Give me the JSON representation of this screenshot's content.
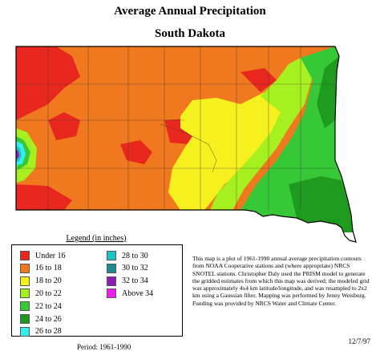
{
  "title": "Average Annual Precipitation",
  "subtitle": "South Dakota",
  "legend": {
    "title": "Legend (in inches)",
    "items": [
      {
        "label": "Under 16",
        "color": "#e8281e"
      },
      {
        "label": "16 to 18",
        "color": "#f0781e"
      },
      {
        "label": "18 to 20",
        "color": "#f5f01e"
      },
      {
        "label": "20 to 22",
        "color": "#a5f01e"
      },
      {
        "label": "22 to 24",
        "color": "#37c837"
      },
      {
        "label": "24 to 26",
        "color": "#1e9b1e"
      },
      {
        "label": "26 to 28",
        "color": "#32f0f0"
      },
      {
        "label": "28 to 30",
        "color": "#1ec3c3"
      },
      {
        "label": "30 to 32",
        "color": "#1e8c91"
      },
      {
        "label": "32 to 34",
        "color": "#8c1eb4"
      },
      {
        "label": "Above 34",
        "color": "#f01ef0"
      }
    ]
  },
  "note": "This map is a plot of 1961-1990 annual average precipitation contours from NOAA Cooperative stations and (where appropriate) NRCS SNOTEL stations. Christopher Daly used the PRISM model to generate the gridded estimates from which this map was derived; the modeled grid was approximately 4x4 km latitude/longitude, and was resampled to 2x2 km using a Gaussian filter. Mapping was performed by Jenny Weisburg. Funding was provided by NRCS Water and Climate Center.",
  "date": "12/7/97",
  "period": "Period: 1961-1990"
}
